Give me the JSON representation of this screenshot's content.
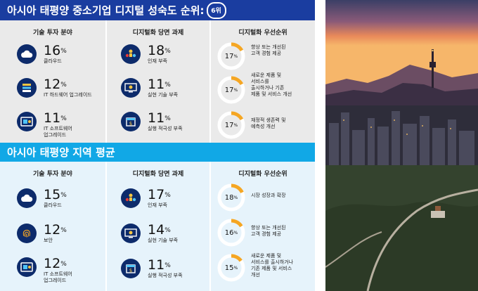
{
  "sme": {
    "title": "아시아 태평양 중소기업 디지털 성숙도 순위:",
    "rank": "6위",
    "columns": [
      {
        "header": "기술 투자 분야",
        "items": [
          {
            "icon": "cloud-icon",
            "value": "16",
            "unit": "%",
            "label": "클라우드"
          },
          {
            "icon": "server-stack-icon",
            "value": "12",
            "unit": "%",
            "label": "IT 하드웨어 업그레이드"
          },
          {
            "icon": "software-window-icon",
            "value": "11",
            "unit": "%",
            "label": "IT 소프트웨어\n업그레이드"
          }
        ]
      },
      {
        "header": "디지털화 당면 과제",
        "items": [
          {
            "icon": "people-icon",
            "value": "18",
            "unit": "%",
            "label": "인재 부족"
          },
          {
            "icon": "monitor-tools-icon",
            "value": "11",
            "unit": "%",
            "label": "실현 기술 부족"
          },
          {
            "icon": "calendar-money-icon",
            "value": "11",
            "unit": "%",
            "label": "실행 적극성 부족"
          }
        ]
      },
      {
        "header": "디지털화 우선순위",
        "rings": [
          {
            "value": "17",
            "unit": "%",
            "fraction": 0.17,
            "label": "향상 또는 개선된\n고객 경험 제공"
          },
          {
            "value": "17",
            "unit": "%",
            "fraction": 0.17,
            "label": "새로운 제품 및\n서비스를\n출시하거나 기존\n제품 및 서비스 개선"
          },
          {
            "value": "17",
            "unit": "%",
            "fraction": 0.17,
            "label": "재정적 생존력 및\n예측성 개선"
          }
        ]
      }
    ]
  },
  "region": {
    "title": "아시아 태평양 지역 평균",
    "columns": [
      {
        "header": "기술 투자 분야",
        "items": [
          {
            "icon": "cloud-icon",
            "value": "15",
            "unit": "%",
            "label": "클라우드"
          },
          {
            "icon": "fingerprint-icon",
            "value": "12",
            "unit": "%",
            "label": "보안"
          },
          {
            "icon": "software-window-icon",
            "value": "12",
            "unit": "%",
            "label": "IT 소프트웨어\n업그레이드"
          }
        ]
      },
      {
        "header": "디지털화 당면 과제",
        "items": [
          {
            "icon": "people-icon",
            "value": "17",
            "unit": "%",
            "label": "인재 부족"
          },
          {
            "icon": "monitor-tools-icon",
            "value": "14",
            "unit": "%",
            "label": "실현 기술 부족"
          },
          {
            "icon": "calendar-money-icon",
            "value": "11",
            "unit": "%",
            "label": "실행 적극성 부족"
          }
        ]
      },
      {
        "header": "디지털화 우선순위",
        "rings": [
          {
            "value": "18",
            "unit": "%",
            "fraction": 0.18,
            "label": "시장 성장과 확장"
          },
          {
            "value": "16",
            "unit": "%",
            "fraction": 0.16,
            "label": "향상 또는 개선된\n고객 경험 제공"
          },
          {
            "value": "15",
            "unit": "%",
            "fraction": 0.15,
            "label": "새로운 제품 및\n서비스를 출시하거나\n기존 제품 및 서비스\n개선"
          }
        ]
      }
    ]
  },
  "colors": {
    "banner_dark": "#1a3da0",
    "banner_light": "#11a8e6",
    "icon_navy": "#0d2b6b",
    "ring_accent": "#f5a623",
    "ring_track": "#ffffff"
  }
}
